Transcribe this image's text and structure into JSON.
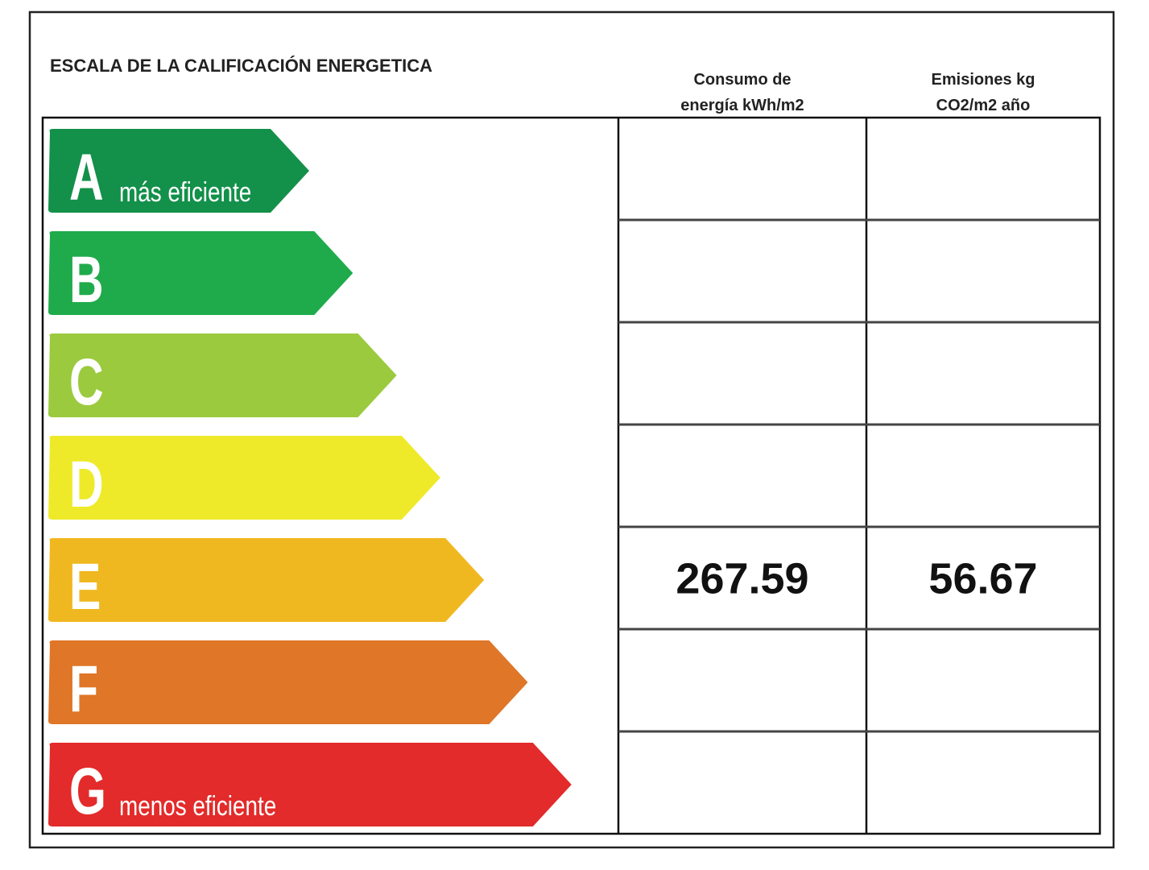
{
  "title": "ESCALA DE LA CALIFICACIÓN ENERGETICA",
  "columns": [
    {
      "lines": [
        "Consumo de",
        "energía kWh/m2"
      ]
    },
    {
      "lines": [
        "Emisiones kg",
        "CO2/m2 año"
      ]
    }
  ],
  "rows": [
    {
      "letter": "A",
      "note": "más eficiente",
      "color": "#13904a"
    },
    {
      "letter": "B",
      "color": "#1fab4b"
    },
    {
      "letter": "C",
      "color": "#9bca3e"
    },
    {
      "letter": "D",
      "color": "#eeea2a"
    },
    {
      "letter": "E",
      "color": "#f0b820",
      "energy": "267.59",
      "emissions": "56.67"
    },
    {
      "letter": "F",
      "color": "#df7628"
    },
    {
      "letter": "G",
      "note": "menos eficiente",
      "color": "#e22b2a"
    }
  ]
}
